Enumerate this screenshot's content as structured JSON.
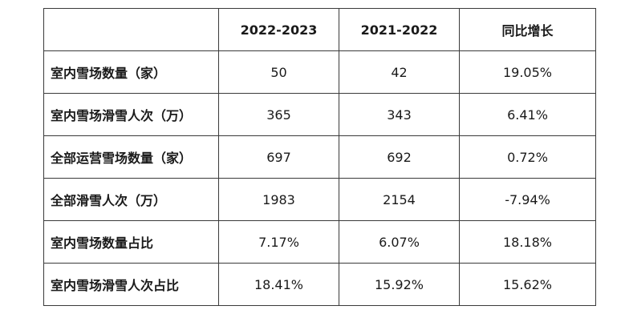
{
  "table": {
    "headers": [
      "",
      "2022-2023",
      "2021-2022",
      "同比增长"
    ],
    "rows": [
      {
        "label": "室内雪场数量（家）",
        "values": [
          "50",
          "42",
          "19.05%"
        ]
      },
      {
        "label": "室内雪场滑雪人次（万）",
        "values": [
          "365",
          "343",
          "6.41%"
        ]
      },
      {
        "label": "全部运营雪场数量（家）",
        "values": [
          "697",
          "692",
          "0.72%"
        ]
      },
      {
        "label": "全部滑雪人次（万）",
        "values": [
          "1983",
          "2154",
          "-7.94%"
        ]
      },
      {
        "label": "室内雪场数量占比",
        "values": [
          "7.17%",
          "6.07%",
          "18.18%"
        ]
      },
      {
        "label": "室内雪场滑雪人次占比",
        "values": [
          "18.41%",
          "15.92%",
          "15.62%"
        ]
      }
    ]
  }
}
